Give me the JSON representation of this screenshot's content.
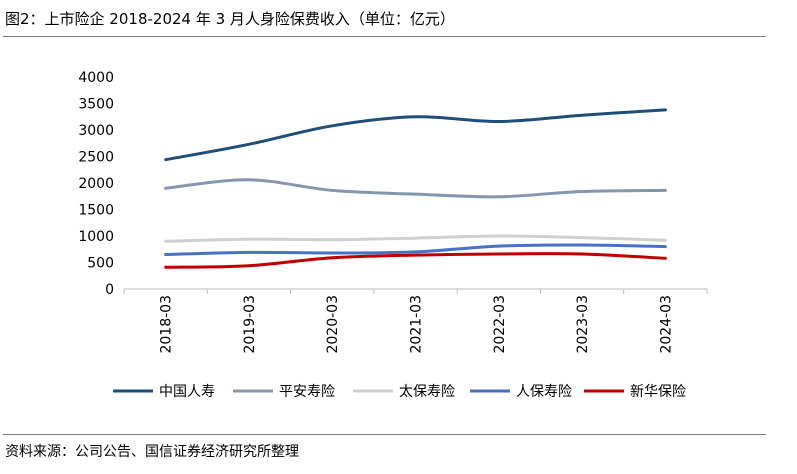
{
  "header": {
    "title": "图2：上市险企 2018-2024 年 3 月人身险保费收入（单位：亿元）"
  },
  "footer": {
    "source": "资料来源：公司公告、国信证券经济研究所整理"
  },
  "chart_data": {
    "type": "line",
    "title": "图2：上市险企 2018-2024 年 3 月人身险保费收入（单位：亿元）",
    "xlabel": "",
    "ylabel": "",
    "categories": [
      "2018-03",
      "2019-03",
      "2020-03",
      "2021-03",
      "2022-03",
      "2023-03",
      "2024-03"
    ],
    "yticks": [
      "0",
      "500",
      "1000",
      "1500",
      "2000",
      "2500",
      "3000",
      "3500",
      "4000"
    ],
    "ylim": [
      0,
      4000
    ],
    "grid": false,
    "legend_position": "bottom",
    "series": [
      {
        "name": "中国人寿",
        "color": "#1f4e79",
        "values": [
          2440,
          2730,
          3080,
          3250,
          3160,
          3280,
          3380
        ]
      },
      {
        "name": "平安寿险",
        "color": "#8497b0",
        "values": [
          1900,
          2060,
          1860,
          1790,
          1740,
          1840,
          1860
        ]
      },
      {
        "name": "太保寿险",
        "color": "#d0d0d0",
        "values": [
          900,
          940,
          930,
          960,
          1000,
          970,
          920
        ]
      },
      {
        "name": "人保寿险",
        "color": "#4472c4",
        "values": [
          650,
          690,
          680,
          700,
          810,
          830,
          800
        ]
      },
      {
        "name": "新华保险",
        "color": "#c00000",
        "values": [
          410,
          440,
          590,
          640,
          660,
          660,
          580
        ]
      }
    ]
  }
}
